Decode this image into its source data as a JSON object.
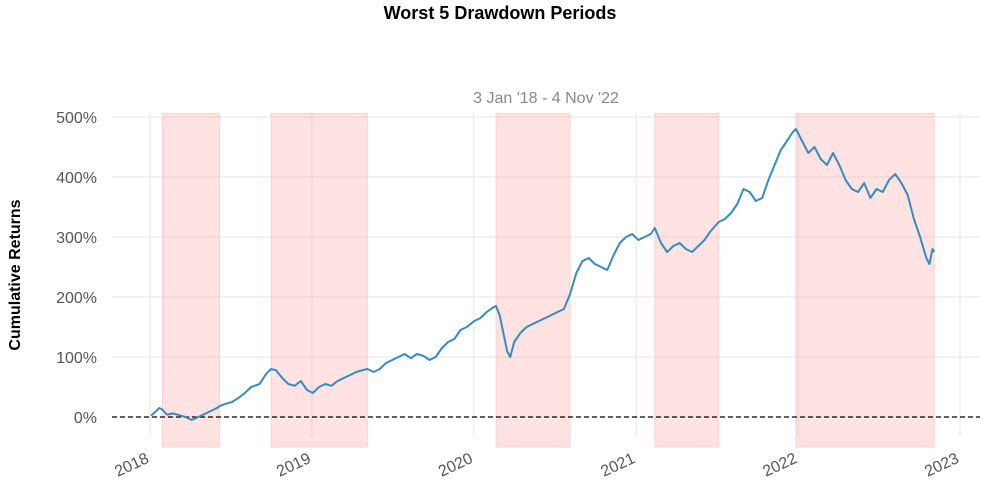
{
  "chart_data": {
    "type": "line",
    "title": "Worst 5 Drawdown Periods",
    "subtitle": "3 Jan '18 -  4 Nov '22",
    "ylabel": "Cumulative Returns",
    "xlabel": "",
    "x_range": [
      "2018-01-03",
      "2022-11-04"
    ],
    "ylim": [
      -50,
      510
    ],
    "y_ticks": [
      0,
      100,
      200,
      300,
      400,
      500
    ],
    "y_tick_labels": [
      "0%",
      "100%",
      "200%",
      "300%",
      "400%",
      "500%"
    ],
    "x_ticks": [
      "2018-01-01",
      "2019-01-01",
      "2020-01-01",
      "2021-01-01",
      "2022-01-01",
      "2023-01-01"
    ],
    "x_tick_labels": [
      "2018",
      "2019",
      "2020",
      "2021",
      "2022",
      "2023"
    ],
    "grid": true,
    "baseline": 0,
    "line_color": "#348dc1",
    "drawdown_color": "#ff9999",
    "drawdown_periods": [
      {
        "start": "2018-01-29",
        "end": "2018-06-07"
      },
      {
        "start": "2018-10-01",
        "end": "2019-05-06"
      },
      {
        "start": "2020-02-20",
        "end": "2020-08-05"
      },
      {
        "start": "2021-02-12",
        "end": "2021-07-06"
      },
      {
        "start": "2021-12-27",
        "end": "2022-11-04"
      }
    ],
    "series": [
      {
        "points": [
          [
            "2018-01-03",
            2
          ],
          [
            "2018-01-12",
            8
          ],
          [
            "2018-01-22",
            15
          ],
          [
            "2018-01-29",
            12
          ],
          [
            "2018-02-08",
            4
          ],
          [
            "2018-02-22",
            6
          ],
          [
            "2018-03-08",
            3
          ],
          [
            "2018-03-22",
            0
          ],
          [
            "2018-04-05",
            -5
          ],
          [
            "2018-04-20",
            0
          ],
          [
            "2018-05-04",
            5
          ],
          [
            "2018-05-18",
            10
          ],
          [
            "2018-06-01",
            15
          ],
          [
            "2018-06-07",
            18
          ],
          [
            "2018-06-20",
            22
          ],
          [
            "2018-07-05",
            25
          ],
          [
            "2018-07-20",
            32
          ],
          [
            "2018-08-03",
            40
          ],
          [
            "2018-08-17",
            50
          ],
          [
            "2018-09-05",
            55
          ],
          [
            "2018-09-20",
            72
          ],
          [
            "2018-10-01",
            80
          ],
          [
            "2018-10-12",
            78
          ],
          [
            "2018-10-26",
            65
          ],
          [
            "2018-11-09",
            55
          ],
          [
            "2018-11-23",
            52
          ],
          [
            "2018-12-07",
            60
          ],
          [
            "2018-12-21",
            45
          ],
          [
            "2019-01-03",
            40
          ],
          [
            "2019-01-17",
            50
          ],
          [
            "2019-01-31",
            55
          ],
          [
            "2019-02-14",
            52
          ],
          [
            "2019-02-28",
            60
          ],
          [
            "2019-03-14",
            65
          ],
          [
            "2019-03-28",
            70
          ],
          [
            "2019-04-11",
            75
          ],
          [
            "2019-04-25",
            78
          ],
          [
            "2019-05-06",
            80
          ],
          [
            "2019-05-20",
            75
          ],
          [
            "2019-06-03",
            80
          ],
          [
            "2019-06-17",
            90
          ],
          [
            "2019-07-01",
            95
          ],
          [
            "2019-07-15",
            100
          ],
          [
            "2019-07-29",
            105
          ],
          [
            "2019-08-12",
            98
          ],
          [
            "2019-08-26",
            105
          ],
          [
            "2019-09-09",
            102
          ],
          [
            "2019-09-23",
            95
          ],
          [
            "2019-10-07",
            100
          ],
          [
            "2019-10-21",
            115
          ],
          [
            "2019-11-04",
            125
          ],
          [
            "2019-11-18",
            130
          ],
          [
            "2019-12-02",
            145
          ],
          [
            "2019-12-16",
            150
          ],
          [
            "2020-01-02",
            160
          ],
          [
            "2020-01-16",
            165
          ],
          [
            "2020-01-30",
            175
          ],
          [
            "2020-02-12",
            182
          ],
          [
            "2020-02-20",
            185
          ],
          [
            "2020-02-28",
            170
          ],
          [
            "2020-03-09",
            135
          ],
          [
            "2020-03-16",
            110
          ],
          [
            "2020-03-23",
            100
          ],
          [
            "2020-04-01",
            125
          ],
          [
            "2020-04-15",
            140
          ],
          [
            "2020-04-29",
            150
          ],
          [
            "2020-05-13",
            155
          ],
          [
            "2020-05-27",
            160
          ],
          [
            "2020-06-10",
            165
          ],
          [
            "2020-06-24",
            170
          ],
          [
            "2020-07-08",
            175
          ],
          [
            "2020-07-22",
            180
          ],
          [
            "2020-08-05",
            205
          ],
          [
            "2020-08-19",
            240
          ],
          [
            "2020-09-02",
            260
          ],
          [
            "2020-09-16",
            265
          ],
          [
            "2020-09-30",
            255
          ],
          [
            "2020-10-14",
            250
          ],
          [
            "2020-10-28",
            245
          ],
          [
            "2020-11-11",
            270
          ],
          [
            "2020-11-25",
            290
          ],
          [
            "2020-12-09",
            300
          ],
          [
            "2020-12-23",
            305
          ],
          [
            "2021-01-06",
            295
          ],
          [
            "2021-01-20",
            300
          ],
          [
            "2021-02-03",
            305
          ],
          [
            "2021-02-12",
            315
          ],
          [
            "2021-02-26",
            290
          ],
          [
            "2021-03-12",
            275
          ],
          [
            "2021-03-26",
            285
          ],
          [
            "2021-04-09",
            290
          ],
          [
            "2021-04-23",
            280
          ],
          [
            "2021-05-07",
            275
          ],
          [
            "2021-05-21",
            285
          ],
          [
            "2021-06-04",
            295
          ],
          [
            "2021-06-18",
            310
          ],
          [
            "2021-07-06",
            325
          ],
          [
            "2021-07-20",
            330
          ],
          [
            "2021-08-03",
            340
          ],
          [
            "2021-08-17",
            355
          ],
          [
            "2021-08-31",
            380
          ],
          [
            "2021-09-14",
            375
          ],
          [
            "2021-09-28",
            360
          ],
          [
            "2021-10-12",
            365
          ],
          [
            "2021-10-26",
            395
          ],
          [
            "2021-11-09",
            420
          ],
          [
            "2021-11-23",
            445
          ],
          [
            "2021-12-07",
            460
          ],
          [
            "2021-12-20",
            475
          ],
          [
            "2021-12-27",
            480
          ],
          [
            "2022-01-10",
            460
          ],
          [
            "2022-01-24",
            440
          ],
          [
            "2022-02-07",
            450
          ],
          [
            "2022-02-21",
            430
          ],
          [
            "2022-03-07",
            420
          ],
          [
            "2022-03-21",
            440
          ],
          [
            "2022-04-04",
            420
          ],
          [
            "2022-04-18",
            395
          ],
          [
            "2022-05-02",
            380
          ],
          [
            "2022-05-16",
            375
          ],
          [
            "2022-05-30",
            390
          ],
          [
            "2022-06-13",
            365
          ],
          [
            "2022-06-27",
            380
          ],
          [
            "2022-07-11",
            375
          ],
          [
            "2022-07-25",
            395
          ],
          [
            "2022-08-08",
            405
          ],
          [
            "2022-08-22",
            390
          ],
          [
            "2022-09-05",
            370
          ],
          [
            "2022-09-19",
            330
          ],
          [
            "2022-10-03",
            300
          ],
          [
            "2022-10-17",
            265
          ],
          [
            "2022-10-24",
            255
          ],
          [
            "2022-10-31",
            280
          ],
          [
            "2022-11-04",
            275
          ]
        ]
      }
    ]
  }
}
